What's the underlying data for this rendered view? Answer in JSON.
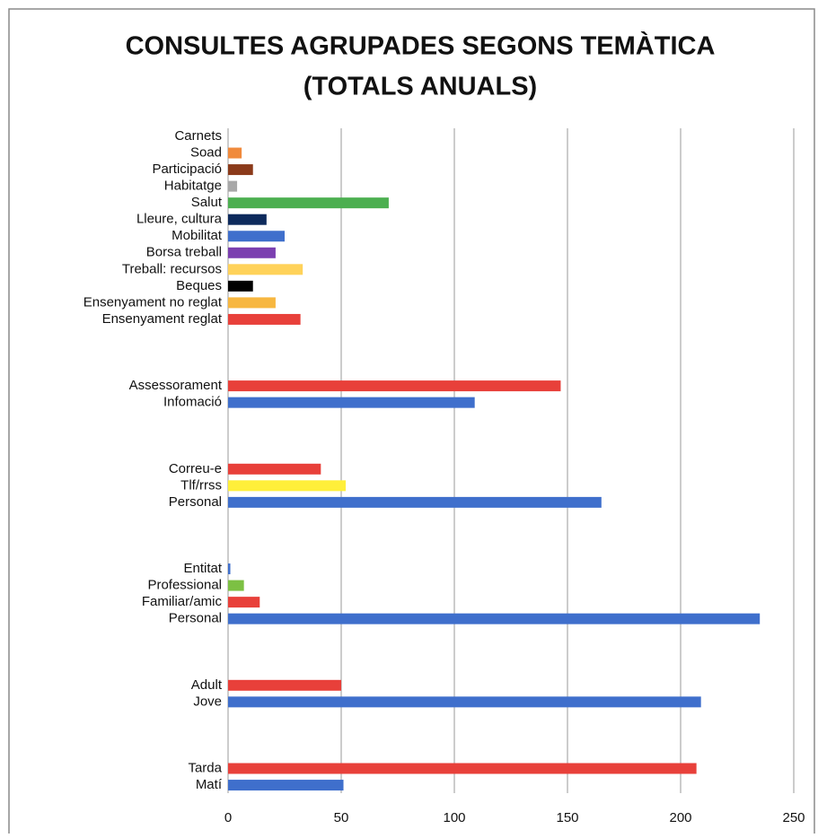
{
  "chart_data": {
    "type": "hbar",
    "title": [
      "CONSULTES AGRUPADES SEGONS TEMÀTICA",
      "(TOTALS ANUALS)"
    ],
    "categories": [
      "Carnets",
      "Soad",
      "Participació ",
      "Habitatge",
      "Salut",
      "Lleure, cultura",
      "Mobilitat",
      "Borsa treball",
      "Treball: recursos",
      "Beques",
      "Ensenyament no reglat",
      "Ensenyament reglat",
      null,
      null,
      null,
      "Assessorament",
      "Infomació",
      null,
      null,
      null,
      "Correu-e",
      "Tlf/rrss",
      "Personal",
      null,
      null,
      null,
      "Entitat",
      "Professional",
      "Familiar/amic",
      "Personal",
      null,
      null,
      null,
      "Adult",
      "Jove",
      null,
      null,
      null,
      "Tarda",
      "Matí"
    ],
    "values": [
      0,
      6,
      11,
      4,
      71,
      17,
      25,
      21,
      33,
      11,
      21,
      32,
      null,
      null,
      null,
      147,
      109,
      null,
      null,
      null,
      41,
      52,
      165,
      null,
      null,
      null,
      1,
      7,
      14,
      235,
      null,
      null,
      null,
      50,
      209,
      null,
      null,
      null,
      207,
      51
    ],
    "colors": [
      "#9e9e9e",
      "#f08a3c",
      "#8b3a1a",
      "#a8a8a8",
      "#4caf50",
      "#0d2a5c",
      "#3f6fcc",
      "#7b3fb0",
      "#ffd25a",
      "#000000",
      "#f7b740",
      "#e8403a",
      null,
      null,
      null,
      "#e8403a",
      "#3f6fcc",
      null,
      null,
      null,
      "#e8403a",
      "#ffef3a",
      "#3f6fcc",
      null,
      null,
      null,
      "#3f6fcc",
      "#7cc043",
      "#e8403a",
      "#3f6fcc",
      null,
      null,
      null,
      "#e8403a",
      "#3f6fcc",
      null,
      null,
      null,
      "#e8403a",
      "#3f6fcc"
    ],
    "xlim": [
      0,
      250
    ],
    "xticks": [
      0,
      50,
      100,
      150,
      200,
      250
    ],
    "grid": true
  }
}
